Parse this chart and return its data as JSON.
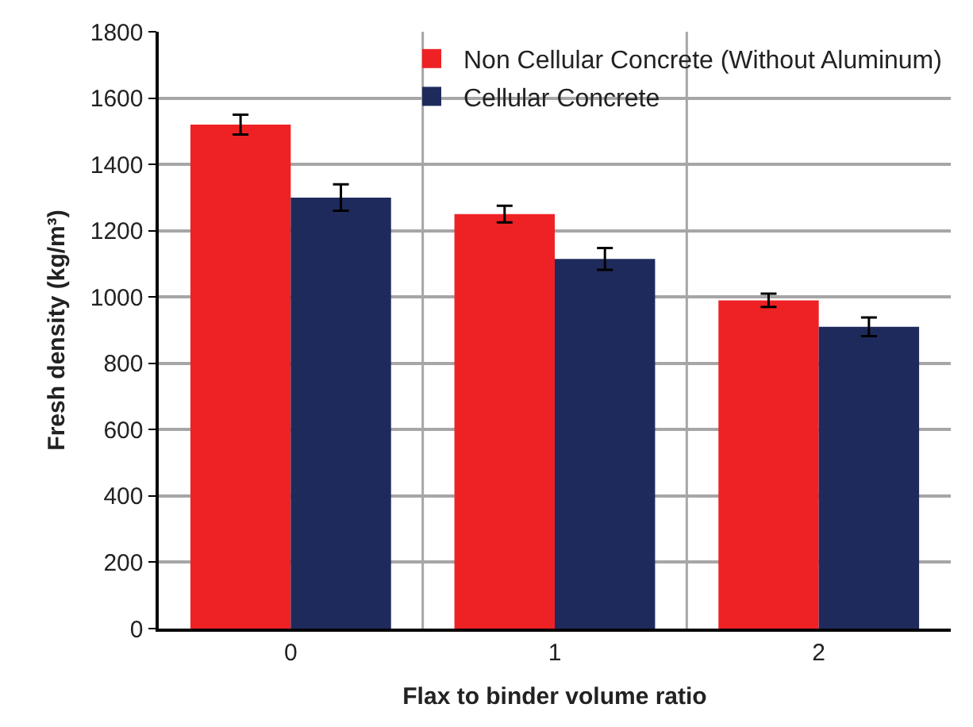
{
  "chart_data": {
    "type": "bar",
    "xlabel": "Flax to binder volume ratio",
    "ylabel": "Fresh density (kg/m³)",
    "categories": [
      "0",
      "1",
      "2"
    ],
    "series": [
      {
        "name": "Non Cellular Concrete (Without Aluminum)",
        "color": "#ee2224",
        "values": [
          1520,
          1250,
          990
        ],
        "errors": [
          30,
          25,
          20
        ]
      },
      {
        "name": "Cellular Concrete",
        "color": "#1f2a5c",
        "values": [
          1300,
          1115,
          910
        ],
        "errors": [
          40,
          33,
          28
        ]
      }
    ],
    "ylim": [
      0,
      1800
    ],
    "yticks": [
      0,
      200,
      400,
      600,
      800,
      1000,
      1200,
      1400,
      1600,
      1800
    ],
    "grid": true,
    "legend": "top right"
  }
}
